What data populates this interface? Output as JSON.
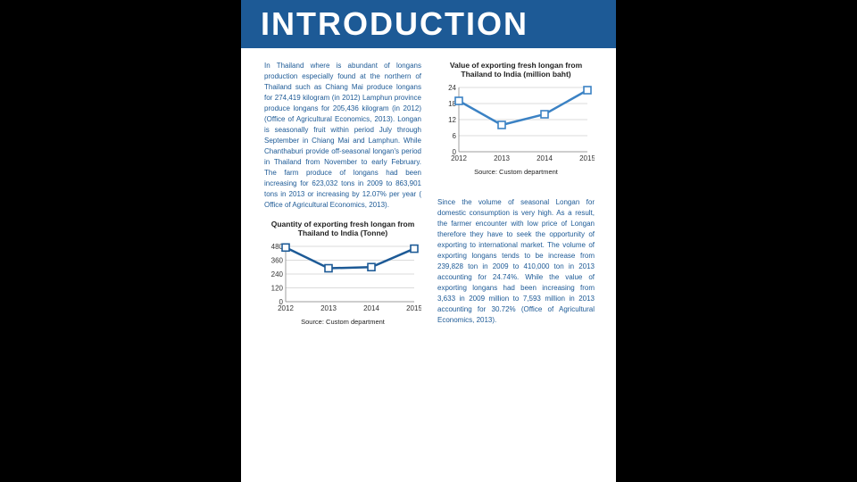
{
  "header": {
    "title": "INTRODUCTION"
  },
  "leftCol": {
    "para1": "In Thailand where is abundant of longans production especially found at the northern of Thailand such as Chiang Mai produce longans  for 274,419 kilogram (in 2012) Lamphun province produce longans for 205,436 kilogram (in 2012)(Office of Agricultural Economics, 2013). Longan is seasonally fruit within period July through September in Chiang Mai and Lamphun. While Chanthaburi provide off-seasonal longan's period in Thailand from November to early February. The farm produce of longans had been increasing for 623,032 tons in 2009 to 863,901 tons in 2013 or increasing by 12.07% per year ( Office of Agricultural Economics, 2013)."
  },
  "rightCol": {
    "para1": "Since the volume of seasonal Longan for domestic consumption is very high. As a result, the farmer encounter with low price of Longan therefore they have to seek the opportunity of exporting to international market. The volume of exporting longans tends to be increase from 239,828 ton in 2009 to 410,000 ton in 2013 accounting for 24.74%. While the value of exporting longans had been increasing from 3,633 in 2009 million to 7,593 million in 2013 accounting for 30.72% (Office of Agricultural Economics, 2013)."
  },
  "chart1": {
    "type": "line",
    "title": "Value of exporting fresh longan from Thailand to India (million baht)",
    "source": "Source: Custom department",
    "x_labels": [
      "2012",
      "2013",
      "2014",
      "2015"
    ],
    "y_ticks": [
      0,
      6,
      12,
      18,
      24
    ],
    "ylim": [
      0,
      24
    ],
    "values": [
      19,
      10,
      14,
      23
    ],
    "line_color": "#3b82c4",
    "marker_fill": "#ffffff",
    "marker_stroke": "#3b82c4",
    "grid_color": "#b8b8b8",
    "axis_color": "#888",
    "text_color": "#333",
    "line_width": 2.5,
    "marker_size": 4,
    "font_size": 8
  },
  "chart2": {
    "type": "line",
    "title": "Quantity of exporting fresh longan from Thailand to India (Tonne)",
    "source": "Source: Custom department",
    "x_labels": [
      "2012",
      "2013",
      "2014",
      "2015"
    ],
    "y_ticks": [
      0,
      120,
      240,
      360,
      480
    ],
    "ylim": [
      0,
      480
    ],
    "values": [
      470,
      290,
      300,
      460
    ],
    "line_color": "#1d5a96",
    "marker_fill": "#ffffff",
    "marker_stroke": "#1d5a96",
    "grid_color": "#b8b8b8",
    "axis_color": "#888",
    "text_color": "#333",
    "line_width": 2.5,
    "marker_size": 4,
    "font_size": 8
  }
}
